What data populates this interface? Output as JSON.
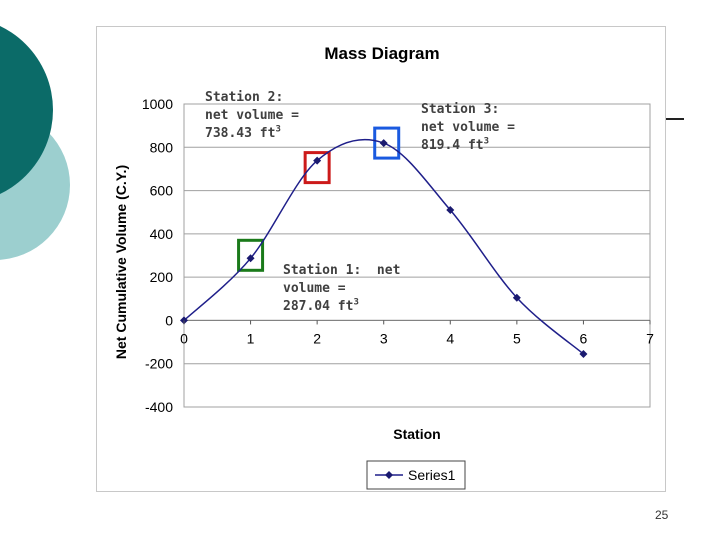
{
  "chart_data": {
    "type": "line",
    "title": "Mass Diagram",
    "xlabel": "Station",
    "ylabel": "Net Cumulative Volume (C.Y.)",
    "xlim": [
      0,
      7
    ],
    "ylim": [
      -400,
      1000
    ],
    "x_ticks": [
      "0",
      "1",
      "2",
      "3",
      "4",
      "5",
      "6",
      "7"
    ],
    "y_ticks": [
      "1000",
      "800",
      "600",
      "400",
      "200",
      "0",
      "-200",
      "-400"
    ],
    "grid": true,
    "legend": "bottom",
    "series": [
      {
        "name": "Series1",
        "x": [
          0,
          1,
          2,
          3,
          4,
          5,
          6
        ],
        "y": [
          0,
          287.04,
          738.43,
          819.4,
          510,
          105,
          -155
        ]
      }
    ],
    "annotations": [
      {
        "prefix": "Station 1:  net\nvolume =\n287.04 ft",
        "sup": "3",
        "station": 1,
        "value": 287.04
      },
      {
        "prefix": "Station 2:\nnet volume =\n738.43 ft",
        "sup": "3",
        "station": 2,
        "value": 738.43
      },
      {
        "prefix": "Station 3:\nnet volume =\n819.4 ft",
        "sup": "3",
        "station": 3,
        "value": 819.4
      }
    ]
  },
  "colors": {
    "line": "#1f1f8a",
    "marker": "#1a1a70",
    "grid": "#a0a0a0",
    "box_station1": "#1a7a1a",
    "box_station2": "#cc1a1a",
    "box_station3": "#1a5ae0",
    "deco_dark": "#0b6b68",
    "deco_light": "#9ccfcf"
  },
  "page_number": "25"
}
